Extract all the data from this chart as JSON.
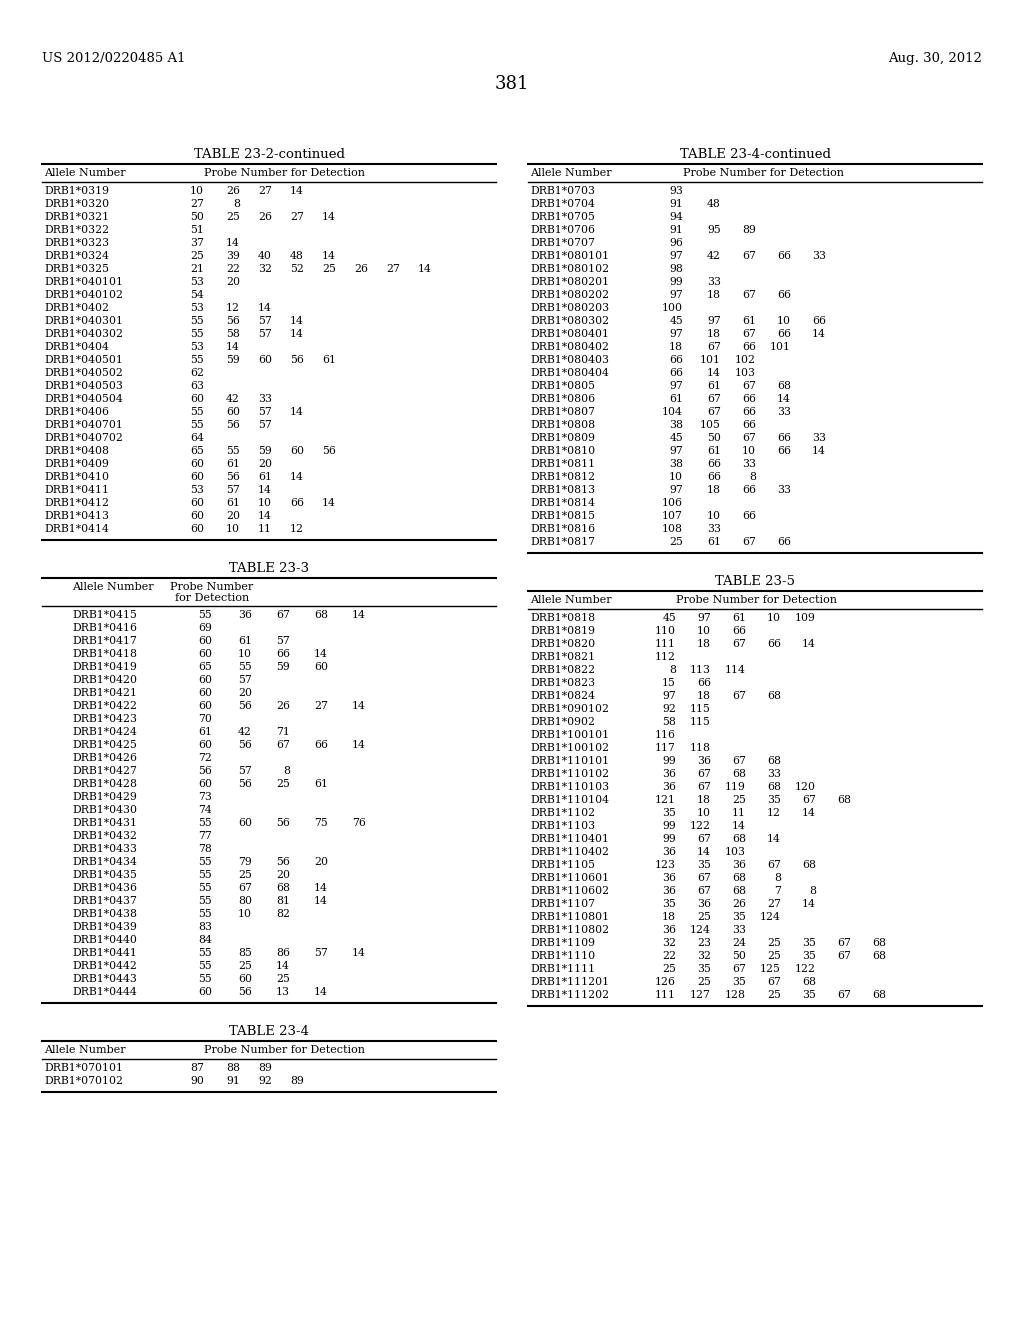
{
  "header_left": "US 2012/0220485 A1",
  "header_right": "Aug. 30, 2012",
  "page_number": "381",
  "table23_2_continued": {
    "title": "TABLE 23-2-continued",
    "rows": [
      [
        "DRB1*0319",
        "10",
        "26",
        "27",
        "14",
        "",
        "",
        "",
        ""
      ],
      [
        "DRB1*0320",
        "27",
        "8",
        "",
        "",
        "",
        "",
        "",
        ""
      ],
      [
        "DRB1*0321",
        "50",
        "25",
        "26",
        "27",
        "14",
        "",
        "",
        ""
      ],
      [
        "DRB1*0322",
        "51",
        "",
        "",
        "",
        "",
        "",
        "",
        ""
      ],
      [
        "DRB1*0323",
        "37",
        "14",
        "",
        "",
        "",
        "",
        "",
        ""
      ],
      [
        "DRB1*0324",
        "25",
        "39",
        "40",
        "48",
        "14",
        "",
        "",
        ""
      ],
      [
        "DRB1*0325",
        "21",
        "22",
        "32",
        "52",
        "25",
        "26",
        "27",
        "14"
      ],
      [
        "DRB1*040101",
        "53",
        "20",
        "",
        "",
        "",
        "",
        "",
        ""
      ],
      [
        "DRB1*040102",
        "54",
        "",
        "",
        "",
        "",
        "",
        "",
        ""
      ],
      [
        "DRB1*0402",
        "53",
        "12",
        "14",
        "",
        "",
        "",
        "",
        ""
      ],
      [
        "DRB1*040301",
        "55",
        "56",
        "57",
        "14",
        "",
        "",
        "",
        ""
      ],
      [
        "DRB1*040302",
        "55",
        "58",
        "57",
        "14",
        "",
        "",
        "",
        ""
      ],
      [
        "DRB1*0404",
        "53",
        "14",
        "",
        "",
        "",
        "",
        "",
        ""
      ],
      [
        "DRB1*040501",
        "55",
        "59",
        "60",
        "56",
        "61",
        "",
        "",
        ""
      ],
      [
        "DRB1*040502",
        "62",
        "",
        "",
        "",
        "",
        "",
        "",
        ""
      ],
      [
        "DRB1*040503",
        "63",
        "",
        "",
        "",
        "",
        "",
        "",
        ""
      ],
      [
        "DRB1*040504",
        "60",
        "42",
        "33",
        "",
        "",
        "",
        "",
        ""
      ],
      [
        "DRB1*0406",
        "55",
        "60",
        "57",
        "14",
        "",
        "",
        "",
        ""
      ],
      [
        "DRB1*040701",
        "55",
        "56",
        "57",
        "",
        "",
        "",
        "",
        ""
      ],
      [
        "DRB1*040702",
        "64",
        "",
        "",
        "",
        "",
        "",
        "",
        ""
      ],
      [
        "DRB1*0408",
        "65",
        "55",
        "59",
        "60",
        "56",
        "",
        "",
        ""
      ],
      [
        "DRB1*0409",
        "60",
        "61",
        "20",
        "",
        "",
        "",
        "",
        ""
      ],
      [
        "DRB1*0410",
        "60",
        "56",
        "61",
        "14",
        "",
        "",
        "",
        ""
      ],
      [
        "DRB1*0411",
        "53",
        "57",
        "14",
        "",
        "",
        "",
        "",
        ""
      ],
      [
        "DRB1*0412",
        "60",
        "61",
        "10",
        "66",
        "14",
        "",
        "",
        ""
      ],
      [
        "DRB1*0413",
        "60",
        "20",
        "14",
        "",
        "",
        "",
        "",
        ""
      ],
      [
        "DRB1*0414",
        "60",
        "10",
        "11",
        "12",
        "",
        "",
        "",
        ""
      ]
    ]
  },
  "table23_3": {
    "title": "TABLE 23-3",
    "rows": [
      [
        "DRB1*0415",
        "55",
        "36",
        "67",
        "68",
        "14"
      ],
      [
        "DRB1*0416",
        "69",
        "",
        "",
        "",
        ""
      ],
      [
        "DRB1*0417",
        "60",
        "61",
        "57",
        "",
        ""
      ],
      [
        "DRB1*0418",
        "60",
        "10",
        "66",
        "14",
        ""
      ],
      [
        "DRB1*0419",
        "65",
        "55",
        "59",
        "60",
        ""
      ],
      [
        "DRB1*0420",
        "60",
        "57",
        "",
        "",
        ""
      ],
      [
        "DRB1*0421",
        "60",
        "20",
        "",
        "",
        ""
      ],
      [
        "DRB1*0422",
        "60",
        "56",
        "26",
        "27",
        "14"
      ],
      [
        "DRB1*0423",
        "70",
        "",
        "",
        "",
        ""
      ],
      [
        "DRB1*0424",
        "61",
        "42",
        "71",
        "",
        ""
      ],
      [
        "DRB1*0425",
        "60",
        "56",
        "67",
        "66",
        "14"
      ],
      [
        "DRB1*0426",
        "72",
        "",
        "",
        "",
        ""
      ],
      [
        "DRB1*0427",
        "56",
        "57",
        "8",
        "",
        ""
      ],
      [
        "DRB1*0428",
        "60",
        "56",
        "25",
        "61",
        ""
      ],
      [
        "DRB1*0429",
        "73",
        "",
        "",
        "",
        ""
      ],
      [
        "DRB1*0430",
        "74",
        "",
        "",
        "",
        ""
      ],
      [
        "DRB1*0431",
        "55",
        "60",
        "56",
        "75",
        "76"
      ],
      [
        "DRB1*0432",
        "77",
        "",
        "",
        "",
        ""
      ],
      [
        "DRB1*0433",
        "78",
        "",
        "",
        "",
        ""
      ],
      [
        "DRB1*0434",
        "55",
        "79",
        "56",
        "20",
        ""
      ],
      [
        "DRB1*0435",
        "55",
        "25",
        "20",
        "",
        ""
      ],
      [
        "DRB1*0436",
        "55",
        "67",
        "68",
        "14",
        ""
      ],
      [
        "DRB1*0437",
        "55",
        "80",
        "81",
        "14",
        ""
      ],
      [
        "DRB1*0438",
        "55",
        "10",
        "82",
        "",
        ""
      ],
      [
        "DRB1*0439",
        "83",
        "",
        "",
        "",
        ""
      ],
      [
        "DRB1*0440",
        "84",
        "",
        "",
        "",
        ""
      ],
      [
        "DRB1*0441",
        "55",
        "85",
        "86",
        "57",
        "14"
      ],
      [
        "DRB1*0442",
        "55",
        "25",
        "14",
        "",
        ""
      ],
      [
        "DRB1*0443",
        "55",
        "60",
        "25",
        "",
        ""
      ],
      [
        "DRB1*0444",
        "60",
        "56",
        "13",
        "14",
        ""
      ]
    ]
  },
  "table23_4": {
    "title": "TABLE 23-4",
    "rows": [
      [
        "DRB1*070101",
        "87",
        "88",
        "89",
        ""
      ],
      [
        "DRB1*070102",
        "90",
        "91",
        "92",
        "89"
      ]
    ]
  },
  "table23_4_continued": {
    "title": "TABLE 23-4-continued",
    "rows": [
      [
        "DRB1*0703",
        "93",
        "",
        "",
        "",
        ""
      ],
      [
        "DRB1*0704",
        "91",
        "48",
        "",
        "",
        ""
      ],
      [
        "DRB1*0705",
        "94",
        "",
        "",
        "",
        ""
      ],
      [
        "DRB1*0706",
        "91",
        "95",
        "89",
        "",
        ""
      ],
      [
        "DRB1*0707",
        "96",
        "",
        "",
        "",
        ""
      ],
      [
        "DRB1*080101",
        "97",
        "42",
        "67",
        "66",
        "33"
      ],
      [
        "DRB1*080102",
        "98",
        "",
        "",
        "",
        ""
      ],
      [
        "DRB1*080201",
        "99",
        "33",
        "",
        "",
        ""
      ],
      [
        "DRB1*080202",
        "97",
        "18",
        "67",
        "66",
        ""
      ],
      [
        "DRB1*080203",
        "100",
        "",
        "",
        "",
        ""
      ],
      [
        "DRB1*080302",
        "45",
        "97",
        "61",
        "10",
        "66"
      ],
      [
        "DRB1*080401",
        "97",
        "18",
        "67",
        "66",
        "14"
      ],
      [
        "DRB1*080402",
        "18",
        "67",
        "66",
        "101",
        ""
      ],
      [
        "DRB1*080403",
        "66",
        "101",
        "102",
        "",
        ""
      ],
      [
        "DRB1*080404",
        "66",
        "14",
        "103",
        "",
        ""
      ],
      [
        "DRB1*0805",
        "97",
        "61",
        "67",
        "68",
        ""
      ],
      [
        "DRB1*0806",
        "61",
        "67",
        "66",
        "14",
        ""
      ],
      [
        "DRB1*0807",
        "104",
        "67",
        "66",
        "33",
        ""
      ],
      [
        "DRB1*0808",
        "38",
        "105",
        "66",
        "",
        ""
      ],
      [
        "DRB1*0809",
        "45",
        "50",
        "67",
        "66",
        "33"
      ],
      [
        "DRB1*0810",
        "97",
        "61",
        "10",
        "66",
        "14"
      ],
      [
        "DRB1*0811",
        "38",
        "66",
        "33",
        "",
        ""
      ],
      [
        "DRB1*0812",
        "10",
        "66",
        "8",
        "",
        ""
      ],
      [
        "DRB1*0813",
        "97",
        "18",
        "66",
        "33",
        ""
      ],
      [
        "DRB1*0814",
        "106",
        "",
        "",
        "",
        ""
      ],
      [
        "DRB1*0815",
        "107",
        "10",
        "66",
        "",
        ""
      ],
      [
        "DRB1*0816",
        "108",
        "33",
        "",
        "",
        ""
      ],
      [
        "DRB1*0817",
        "25",
        "61",
        "67",
        "66",
        ""
      ]
    ]
  },
  "table23_5": {
    "title": "TABLE 23-5",
    "rows": [
      [
        "DRB1*0818",
        "45",
        "97",
        "61",
        "10",
        "109",
        "",
        ""
      ],
      [
        "DRB1*0819",
        "110",
        "10",
        "66",
        "",
        "",
        "",
        ""
      ],
      [
        "DRB1*0820",
        "111",
        "18",
        "67",
        "66",
        "14",
        "",
        ""
      ],
      [
        "DRB1*0821",
        "112",
        "",
        "",
        "",
        "",
        "",
        ""
      ],
      [
        "DRB1*0822",
        "8",
        "113",
        "114",
        "",
        "",
        "",
        ""
      ],
      [
        "DRB1*0823",
        "15",
        "66",
        "",
        "",
        "",
        "",
        ""
      ],
      [
        "DRB1*0824",
        "97",
        "18",
        "67",
        "68",
        "",
        "",
        ""
      ],
      [
        "DRB1*090102",
        "92",
        "115",
        "",
        "",
        "",
        "",
        ""
      ],
      [
        "DRB1*0902",
        "58",
        "115",
        "",
        "",
        "",
        "",
        ""
      ],
      [
        "DRB1*100101",
        "116",
        "",
        "",
        "",
        "",
        "",
        ""
      ],
      [
        "DRB1*100102",
        "117",
        "118",
        "",
        "",
        "",
        "",
        ""
      ],
      [
        "DRB1*110101",
        "99",
        "36",
        "67",
        "68",
        "",
        "",
        ""
      ],
      [
        "DRB1*110102",
        "36",
        "67",
        "68",
        "33",
        "",
        "",
        ""
      ],
      [
        "DRB1*110103",
        "36",
        "67",
        "119",
        "68",
        "120",
        "",
        ""
      ],
      [
        "DRB1*110104",
        "121",
        "18",
        "25",
        "35",
        "67",
        "68",
        ""
      ],
      [
        "DRB1*1102",
        "35",
        "10",
        "11",
        "12",
        "14",
        "",
        ""
      ],
      [
        "DRB1*1103",
        "99",
        "122",
        "14",
        "",
        "",
        "",
        ""
      ],
      [
        "DRB1*110401",
        "99",
        "67",
        "68",
        "14",
        "",
        "",
        ""
      ],
      [
        "DRB1*110402",
        "36",
        "14",
        "103",
        "",
        "",
        "",
        ""
      ],
      [
        "DRB1*1105",
        "123",
        "35",
        "36",
        "67",
        "68",
        "",
        ""
      ],
      [
        "DRB1*110601",
        "36",
        "67",
        "68",
        "8",
        "",
        "",
        ""
      ],
      [
        "DRB1*110602",
        "36",
        "67",
        "68",
        "7",
        "8",
        "",
        ""
      ],
      [
        "DRB1*1107",
        "35",
        "36",
        "26",
        "27",
        "14",
        "",
        ""
      ],
      [
        "DRB1*110801",
        "18",
        "25",
        "35",
        "124",
        "",
        "",
        ""
      ],
      [
        "DRB1*110802",
        "36",
        "124",
        "33",
        "",
        "",
        "",
        ""
      ],
      [
        "DRB1*1109",
        "32",
        "23",
        "24",
        "25",
        "35",
        "67",
        "68"
      ],
      [
        "DRB1*1110",
        "22",
        "32",
        "50",
        "25",
        "35",
        "67",
        "68"
      ],
      [
        "DRB1*1111",
        "25",
        "35",
        "67",
        "125",
        "122",
        "",
        ""
      ],
      [
        "DRB1*111201",
        "126",
        "25",
        "35",
        "67",
        "68",
        "",
        ""
      ],
      [
        "DRB1*111202",
        "111",
        "127",
        "128",
        "25",
        "35",
        "67",
        "68"
      ]
    ]
  }
}
